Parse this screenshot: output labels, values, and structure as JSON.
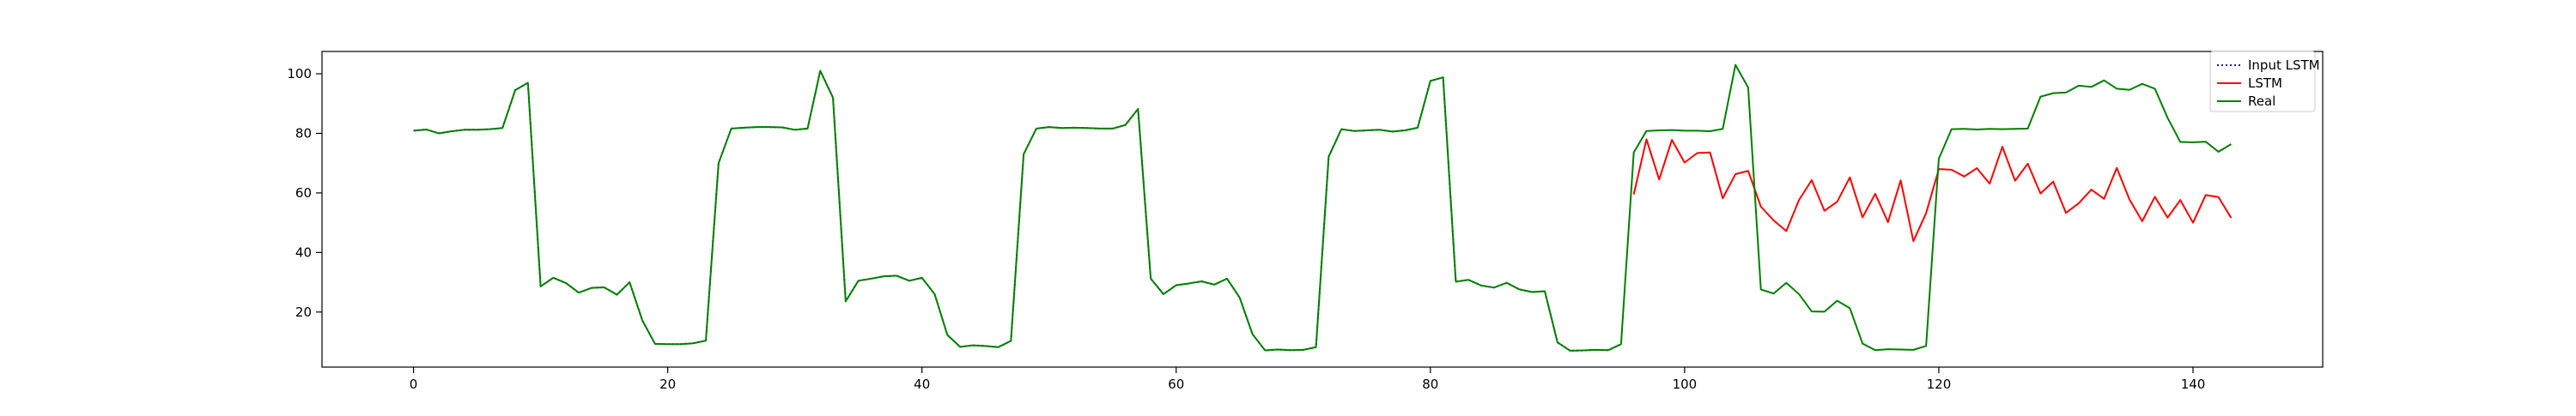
{
  "chart_data": {
    "type": "line",
    "title": "",
    "xlabel": "",
    "ylabel": "",
    "xlim": [
      -7.2,
      150.2
    ],
    "ylim": [
      1.5,
      107.5
    ],
    "xticks": [
      0,
      20,
      40,
      60,
      80,
      100,
      120,
      140
    ],
    "yticks": [
      20,
      40,
      60,
      80,
      100
    ],
    "grid": false,
    "legend": {
      "placement": "top-right",
      "entries": [
        "Input LSTM",
        "LSTM",
        "Real"
      ]
    },
    "series": [
      {
        "name": "Input LSTM",
        "color": "#1f1f7a",
        "style": "dotted",
        "x_start": 0,
        "values": [
          80.9,
          81.3,
          80.0,
          80.7,
          81.2,
          81.2,
          81.4,
          81.8,
          94.5,
          97.0,
          28.6,
          31.5,
          29.7,
          26.5,
          28.1,
          28.3,
          25.8,
          30.0,
          17.2,
          9.3,
          9.2,
          9.2,
          9.5,
          10.4,
          70.0,
          81.6,
          81.9,
          82.1,
          82.1,
          82.0,
          81.2,
          81.6,
          101.0,
          92.0,
          23.6,
          30.5,
          31.2,
          32.0,
          32.2,
          30.5,
          31.5,
          26.0,
          12.3,
          8.3,
          8.8,
          8.6,
          8.2,
          10.3,
          73.0,
          81.6,
          82.1,
          81.8,
          81.9,
          81.8,
          81.6,
          81.6,
          82.8,
          88.2,
          31.2,
          26.0,
          29.0,
          29.6,
          30.3,
          29.2,
          31.2,
          24.8,
          12.6,
          7.1,
          7.4,
          7.2,
          7.3,
          8.2,
          72.2,
          81.4,
          80.8,
          81.0,
          81.2,
          80.6,
          81.0,
          81.9,
          97.6,
          98.8,
          30.2,
          30.8,
          28.9,
          28.2,
          29.8,
          27.6,
          26.7,
          27.0,
          9.8,
          7.0,
          7.1,
          7.3,
          7.2,
          9.2
        ]
      },
      {
        "name": "LSTM",
        "color": "#ff0000",
        "style": "solid",
        "x_start": 96,
        "values": [
          59.5,
          78.0,
          64.5,
          77.8,
          70.2,
          73.4,
          73.6,
          58.2,
          66.3,
          67.4,
          55.4,
          50.8,
          47.2,
          57.6,
          64.3,
          54.0,
          57.0,
          65.2,
          51.8,
          59.7,
          50.2,
          64.2,
          43.8,
          53.2,
          68.0,
          67.8,
          65.5,
          68.3,
          63.1,
          75.5,
          64.1,
          69.8,
          59.8,
          63.8,
          53.3,
          56.5,
          61.1,
          58.0,
          68.4,
          57.8,
          50.5,
          58.7,
          51.7,
          57.6,
          50.0,
          59.3,
          58.6,
          51.6
        ]
      },
      {
        "name": "Real",
        "color": "#008000",
        "style": "solid",
        "x_start": 0,
        "values": [
          80.9,
          81.3,
          80.0,
          80.7,
          81.2,
          81.2,
          81.4,
          81.8,
          94.5,
          97.0,
          28.6,
          31.5,
          29.7,
          26.5,
          28.1,
          28.3,
          25.8,
          30.0,
          17.2,
          9.3,
          9.2,
          9.2,
          9.5,
          10.4,
          70.0,
          81.6,
          81.9,
          82.1,
          82.1,
          82.0,
          81.2,
          81.6,
          101.0,
          92.0,
          23.6,
          30.5,
          31.2,
          32.0,
          32.2,
          30.5,
          31.5,
          26.0,
          12.3,
          8.3,
          8.8,
          8.6,
          8.2,
          10.3,
          73.0,
          81.6,
          82.1,
          81.8,
          81.9,
          81.8,
          81.6,
          81.6,
          82.8,
          88.2,
          31.2,
          26.0,
          29.0,
          29.6,
          30.3,
          29.2,
          31.2,
          24.8,
          12.6,
          7.1,
          7.4,
          7.2,
          7.3,
          8.2,
          72.2,
          81.4,
          80.8,
          81.0,
          81.2,
          80.6,
          81.0,
          81.9,
          97.6,
          98.8,
          30.2,
          30.8,
          28.9,
          28.2,
          29.8,
          27.6,
          26.7,
          27.0,
          9.8,
          7.0,
          7.1,
          7.3,
          7.2,
          9.2,
          73.6,
          80.8,
          81.0,
          81.1,
          80.9,
          80.9,
          80.7,
          81.5,
          103.0,
          95.4,
          27.6,
          26.2,
          29.8,
          26.0,
          20.2,
          20.1,
          23.8,
          21.3,
          9.4,
          7.2,
          7.5,
          7.4,
          7.3,
          8.6,
          71.5,
          81.4,
          81.5,
          81.3,
          81.5,
          81.4,
          81.5,
          81.6,
          92.3,
          93.5,
          93.7,
          96.0,
          95.6,
          97.8,
          95.0,
          94.6,
          96.6,
          95.0,
          85.2,
          77.1,
          77.0,
          77.2,
          73.8,
          76.4
        ]
      }
    ]
  }
}
